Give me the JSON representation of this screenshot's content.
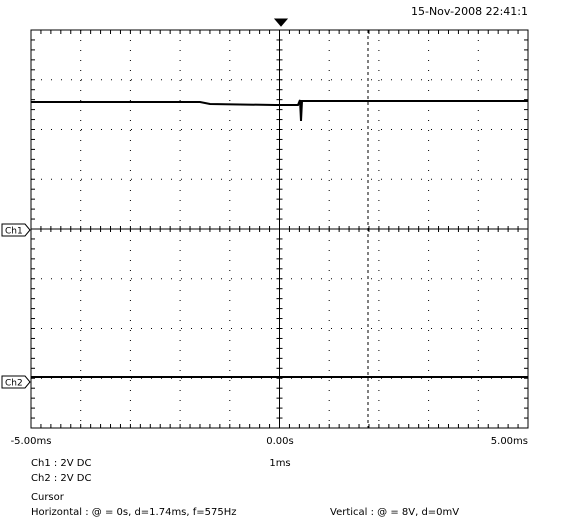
{
  "header": {
    "timestamp": "15-Nov-2008 22:41:1"
  },
  "markers": {
    "ch1": "Ch1",
    "ch2": "Ch2"
  },
  "time_axis": {
    "left": "-5.00ms",
    "center": "0.00s",
    "right": "5.00ms"
  },
  "channels": {
    "ch1": "Ch1 : 2V  DC",
    "ch2": "Ch2 : 2V  DC",
    "timebase": "1ms"
  },
  "cursor": {
    "title": "Cursor",
    "horizontal": "Horizontal : @ = 0s, d=1.74ms, f=575Hz",
    "vertical": "Vertical : @ = 8V, d=0mV"
  }
}
